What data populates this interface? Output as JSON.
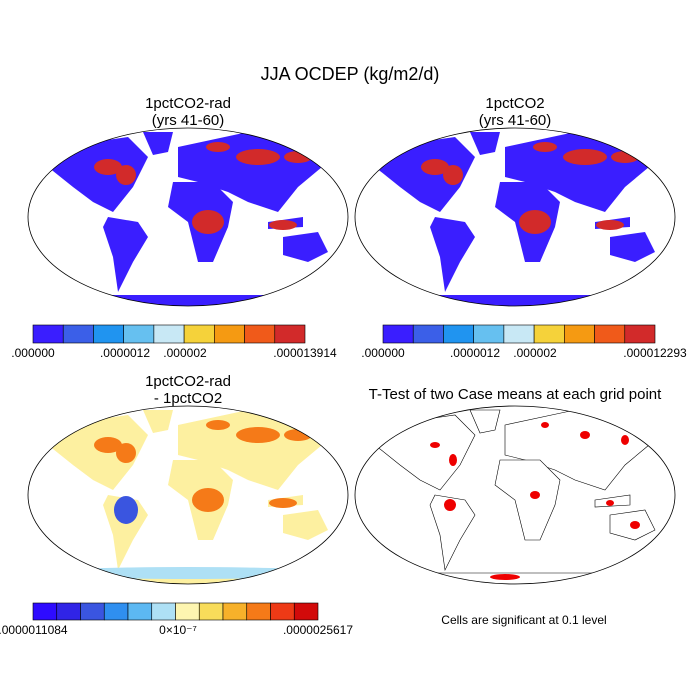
{
  "title": "JJA OCDEP (kg/m2/d)",
  "panels": [
    {
      "title": [
        "1pctCO2-rad",
        "(yrs 41-60)"
      ],
      "colorbar_labels": [
        ".000000",
        ".0000012",
        ".000002",
        ".000013914"
      ]
    },
    {
      "title": [
        "1pctCO2",
        "(yrs 41-60)"
      ],
      "colorbar_labels": [
        ".000000",
        ".0000012",
        ".000002",
        ".000012293"
      ]
    },
    {
      "title": [
        "1pctCO2-rad",
        "- 1pctCO2"
      ],
      "colorbar_labels": [
        ".0000011084",
        "0×10⁻⁷",
        ".0000025617"
      ]
    },
    {
      "title": [
        "T-Test of two Case means at each grid point"
      ],
      "note": "Cells are significant at 0.1 level"
    }
  ]
}
